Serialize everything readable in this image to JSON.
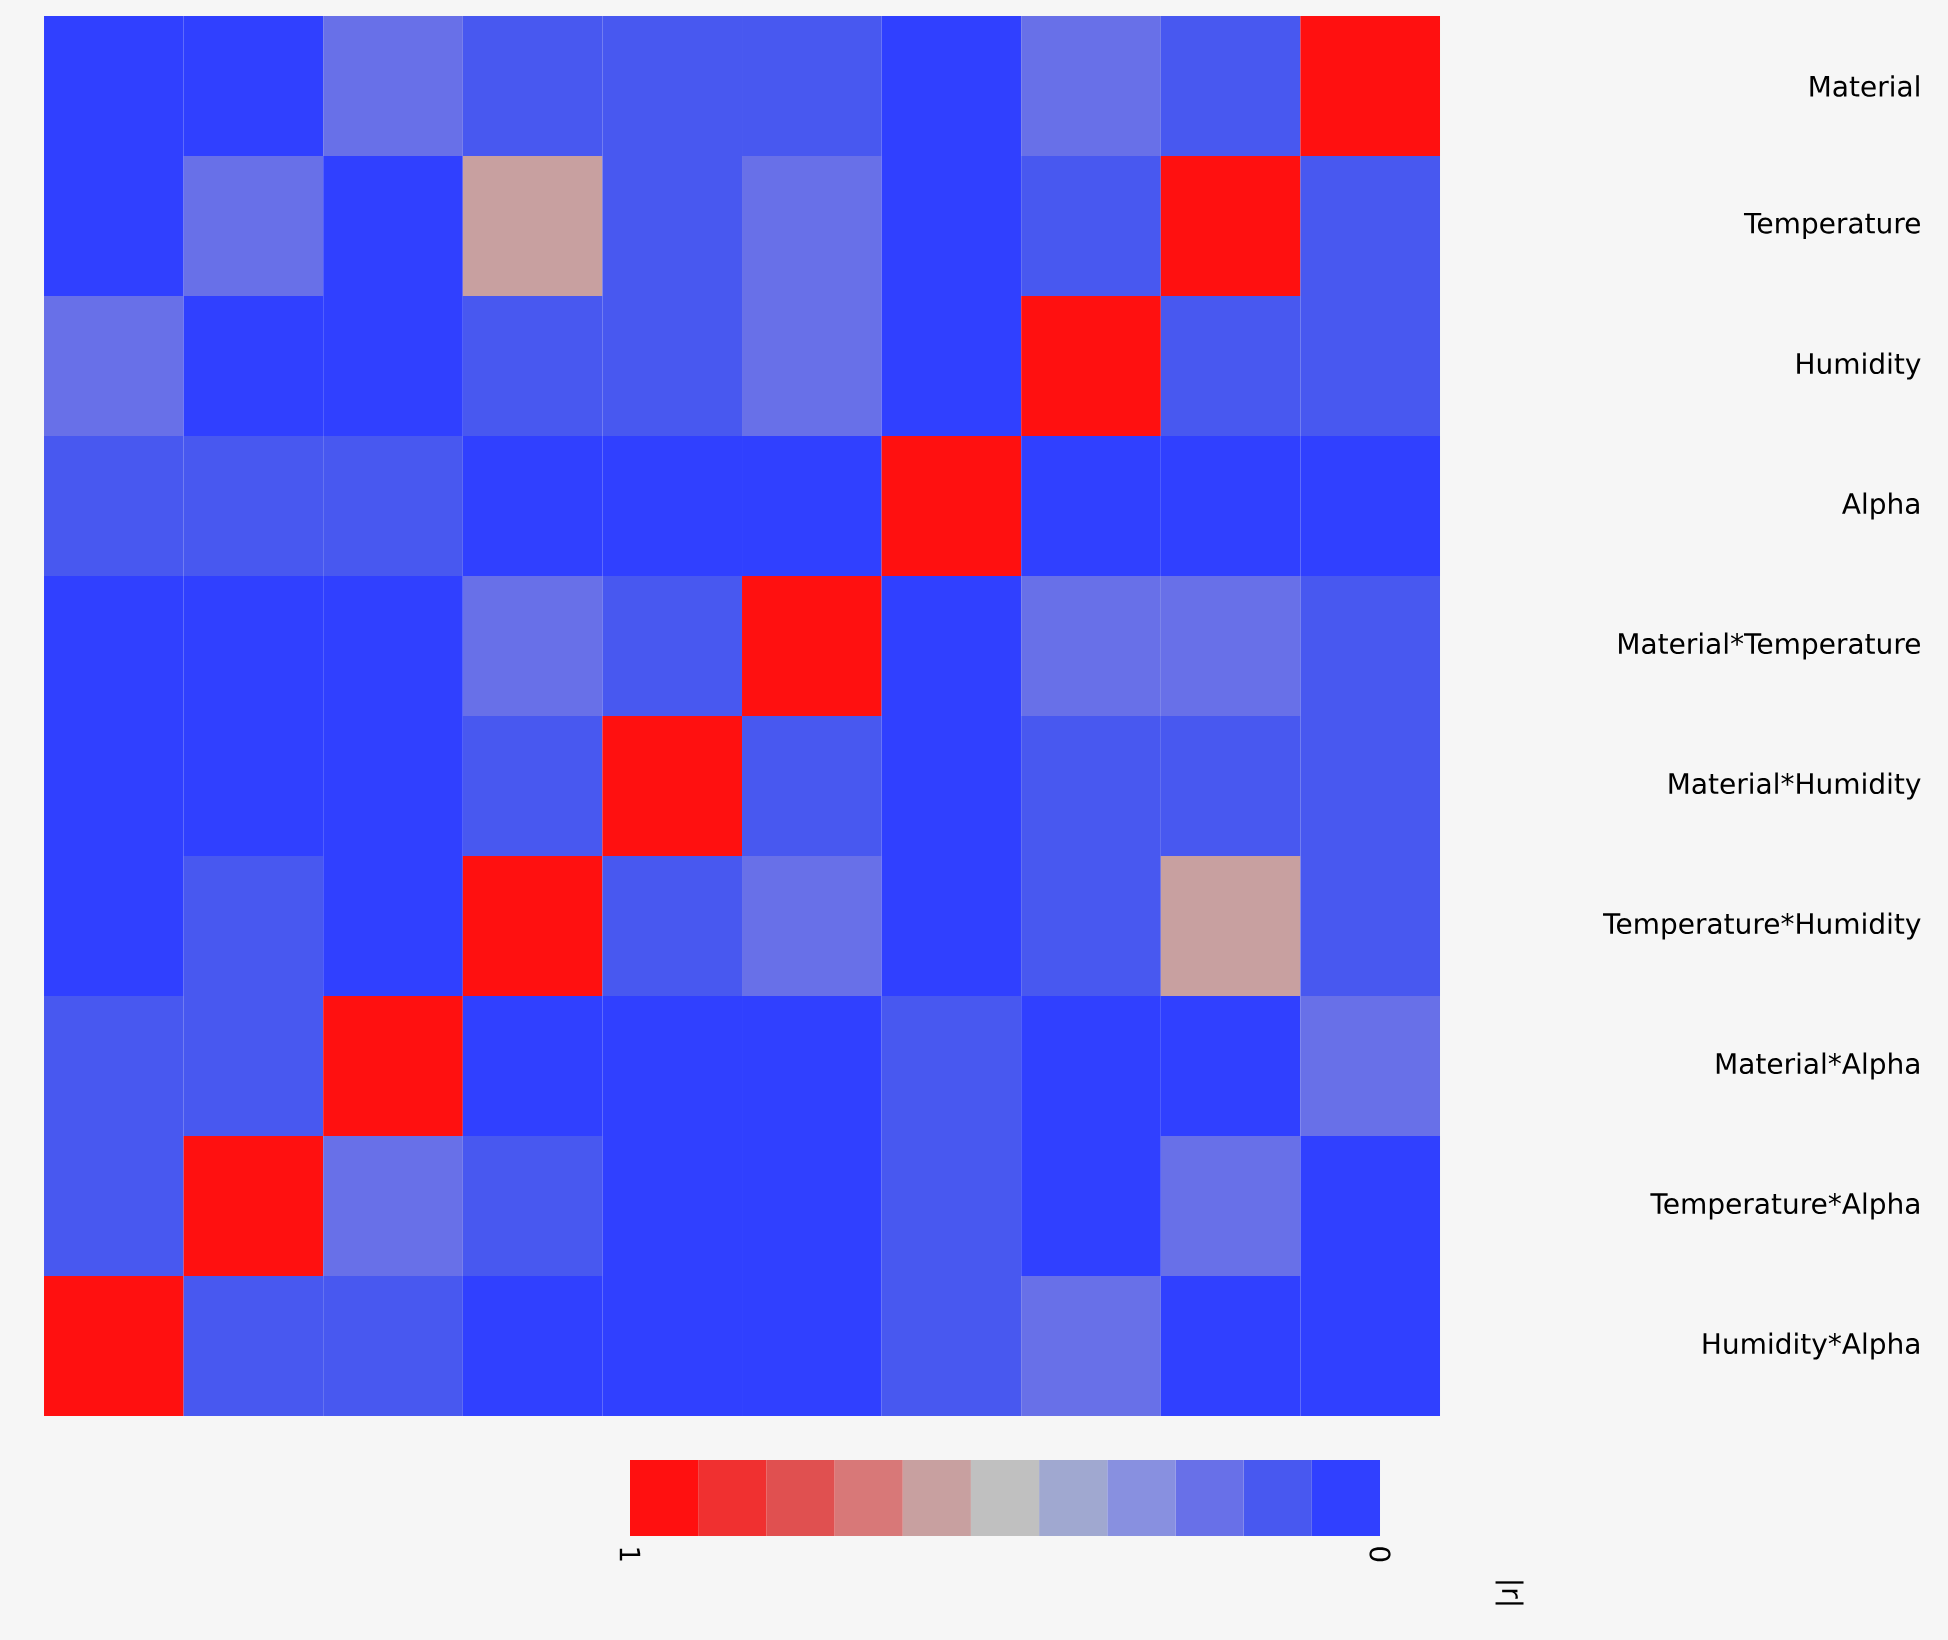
{
  "chart_data": {
    "type": "heatmap",
    "categories": [
      null,
      null,
      null,
      null,
      null,
      null,
      null,
      null,
      null,
      null
    ],
    "y_categories": [
      "Material",
      "Temperature",
      "Humidity",
      "Alpha",
      "Material*Temperature",
      "Material*Humidity",
      "Temperature*Humidity",
      "Material*Alpha",
      "Temperature*Alpha",
      "Humidity*Alpha"
    ],
    "cells": [
      [
        0,
        0,
        0.2,
        0.1,
        0.1,
        0.1,
        0,
        0.2,
        0.1,
        1
      ],
      [
        0,
        0.2,
        0,
        0.6,
        0.1,
        0.2,
        0,
        0.1,
        1,
        0.1
      ],
      [
        0.2,
        0,
        0,
        0.1,
        0.1,
        0.2,
        0,
        1,
        0.1,
        0.1
      ],
      [
        0.1,
        0.1,
        0.1,
        0,
        0,
        0,
        1,
        0,
        0,
        0
      ],
      [
        0,
        0,
        0,
        0.2,
        0.1,
        1,
        0,
        0.2,
        0.2,
        0.1
      ],
      [
        0,
        0,
        0,
        0.1,
        1,
        0.1,
        0,
        0.1,
        0.1,
        0.1
      ],
      [
        0,
        0.1,
        0,
        1,
        0.1,
        0.2,
        0,
        0.1,
        0.6,
        0.1
      ],
      [
        0.1,
        0.1,
        1,
        0,
        0,
        0,
        0.1,
        0,
        0,
        0.2
      ],
      [
        0.1,
        1,
        0.2,
        0.1,
        0,
        0,
        0.1,
        0,
        0.2,
        0
      ],
      [
        1,
        0.1,
        0.1,
        0,
        0,
        0,
        0.1,
        0.2,
        0,
        0
      ]
    ],
    "clim": [
      0,
      1
    ],
    "cticks": [
      1,
      0
    ],
    "clabel": "|r|"
  }
}
